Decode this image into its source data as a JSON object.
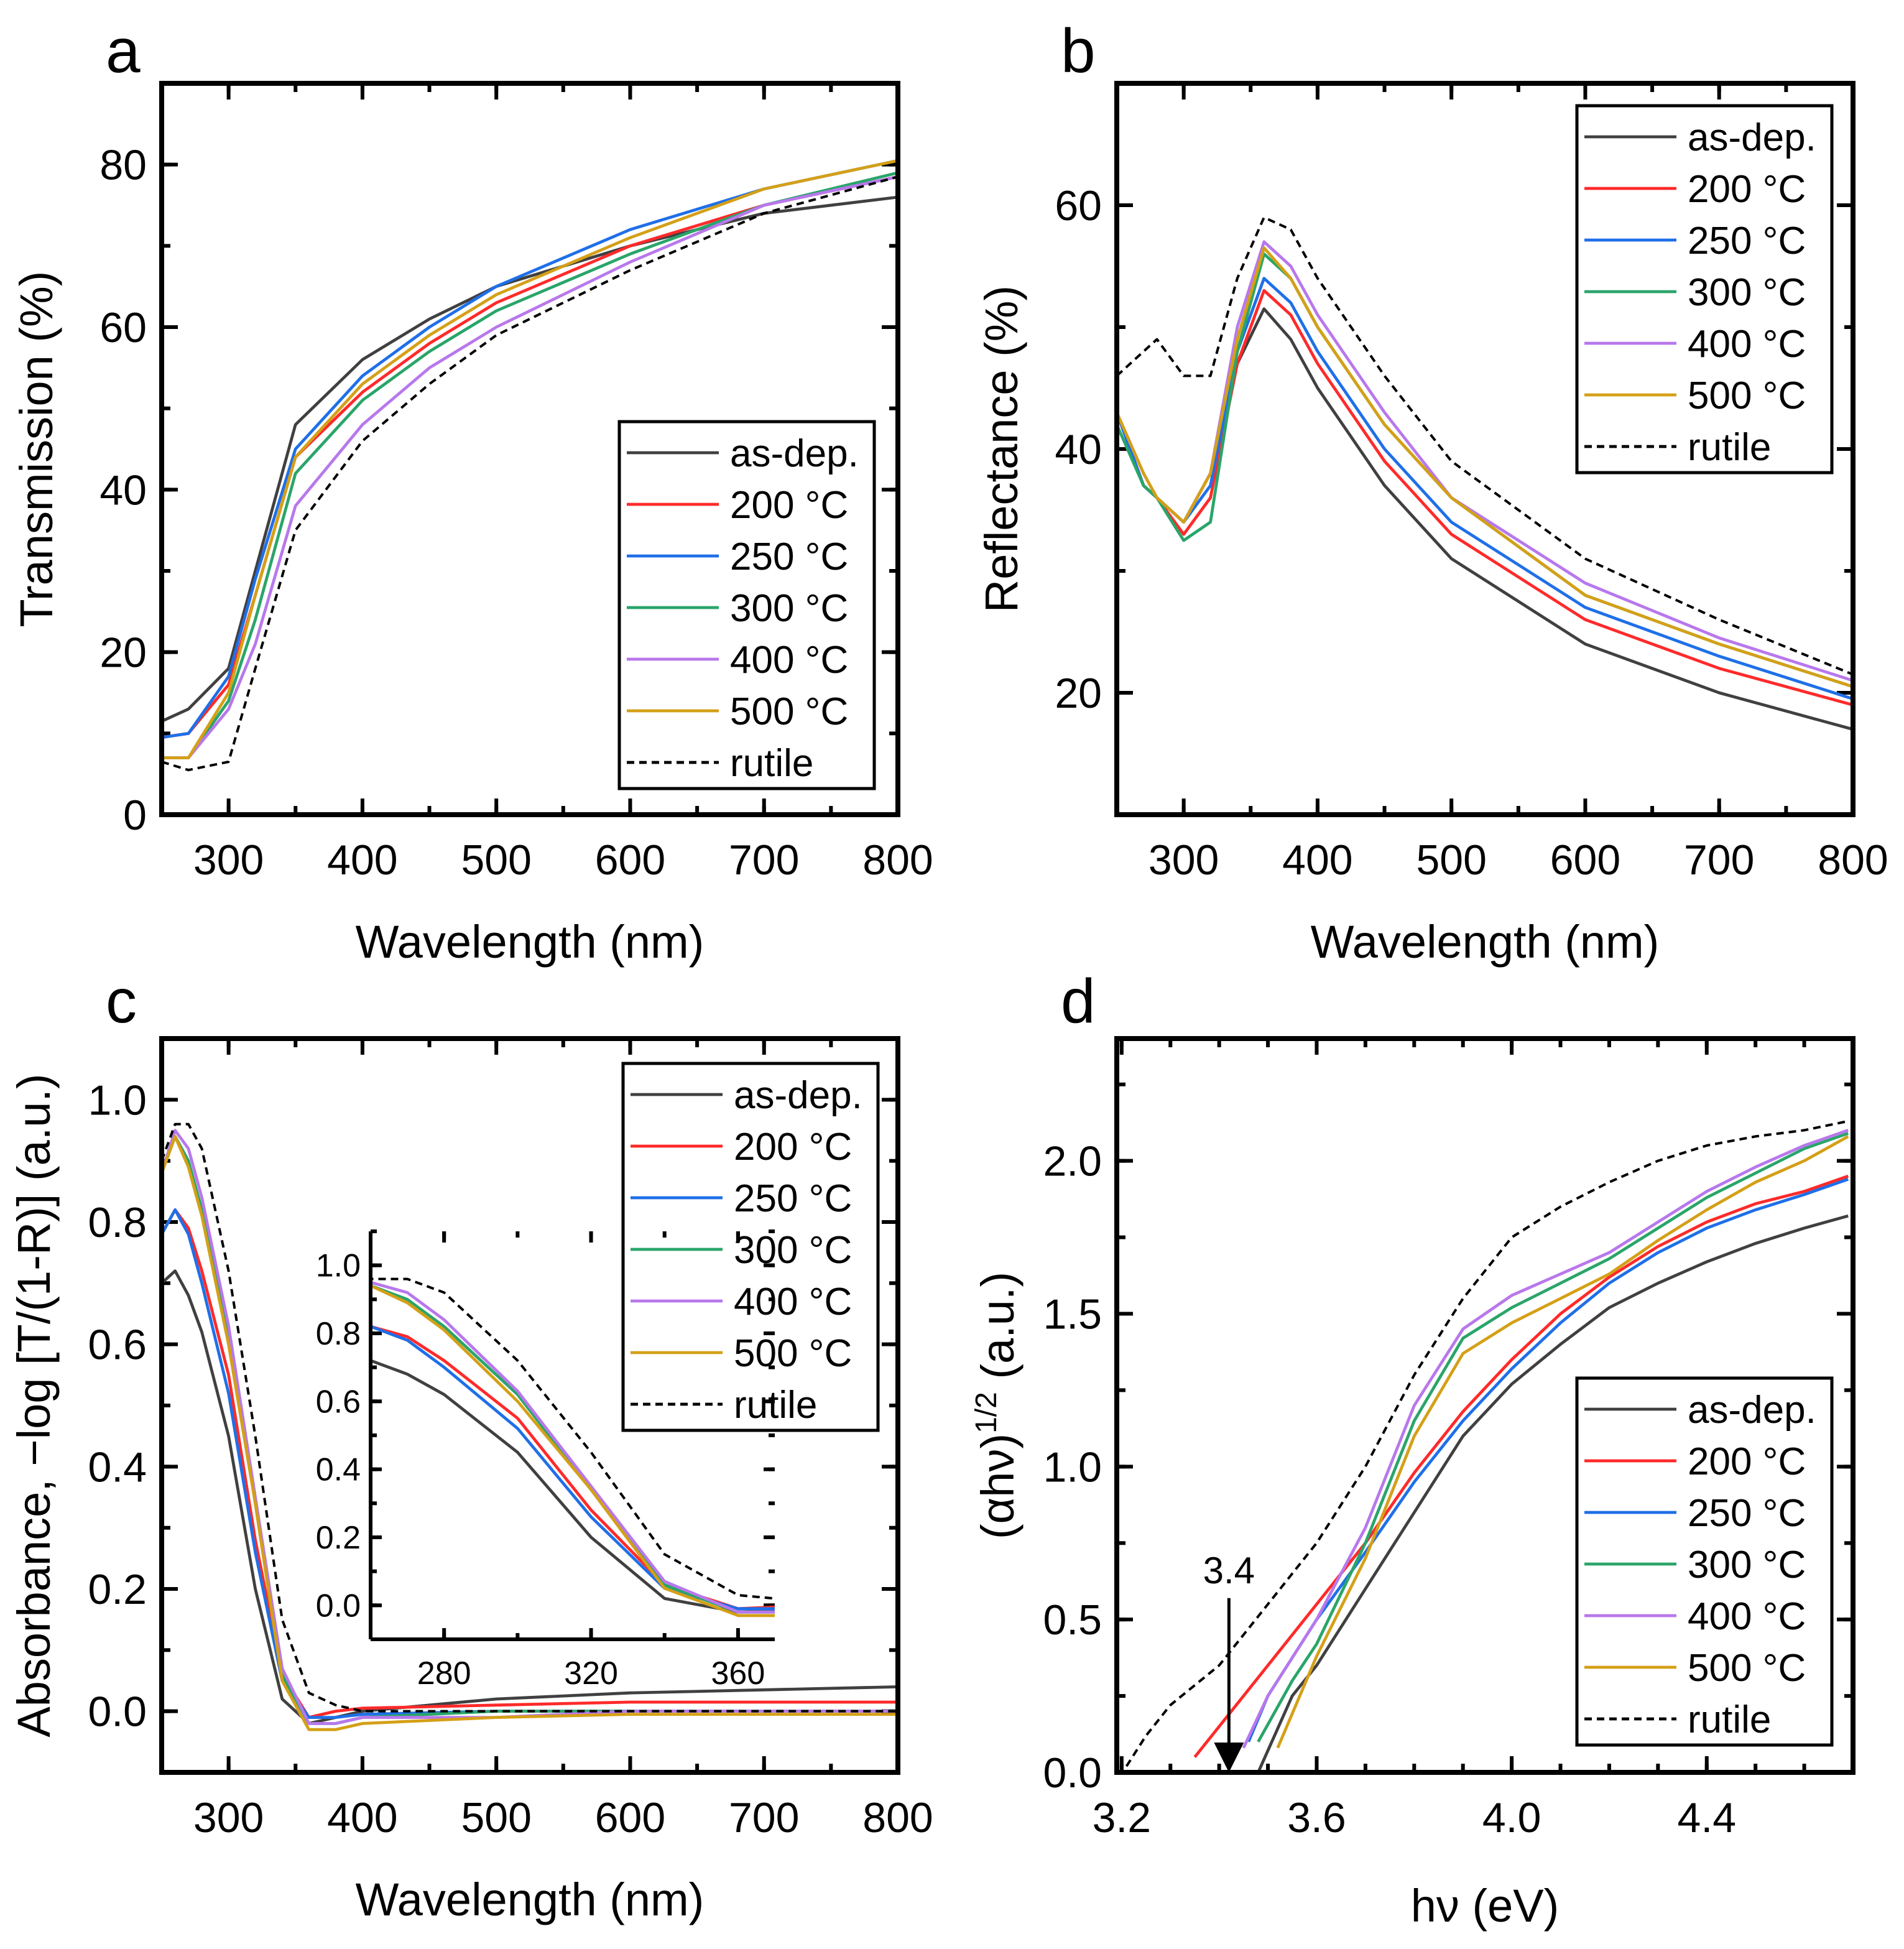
{
  "colors": {
    "as-dep.": "#404040",
    "200 °C": "#ff2a2a",
    "250 °C": "#1f6fe8",
    "300 °C": "#2aa56a",
    "400 °C": "#b878ec",
    "500 °C": "#d4a017",
    "rutile": "#000000"
  },
  "chart_data": [
    {
      "panel": "a",
      "type": "line",
      "xlabel": "Wavelength (nm)",
      "ylabel": "Transmission (%)",
      "xlim": [
        250,
        800
      ],
      "ylim": [
        0,
        90
      ],
      "xticks": [
        300,
        400,
        500,
        600,
        700,
        800
      ],
      "yticks": [
        0,
        20,
        40,
        60,
        80
      ],
      "grid": false,
      "legend": "bottom-right",
      "x": [
        250,
        270,
        300,
        320,
        350,
        400,
        450,
        500,
        600,
        700,
        800
      ],
      "series": [
        {
          "name": "as-dep.",
          "values": [
            11.5,
            13,
            18,
            30,
            48,
            56,
            61,
            65,
            70,
            74,
            76
          ]
        },
        {
          "name": "200 °C",
          "values": [
            9.5,
            10,
            16,
            27,
            44,
            52,
            58,
            63,
            70,
            75,
            78.5
          ]
        },
        {
          "name": "250 °C",
          "values": [
            9.5,
            10,
            17,
            29,
            45,
            54,
            60,
            65,
            72,
            77,
            80.5
          ]
        },
        {
          "name": "300 °C",
          "values": [
            7,
            7,
            14,
            24,
            42,
            51,
            57,
            62,
            69,
            75,
            79
          ]
        },
        {
          "name": "400 °C",
          "values": [
            7,
            7,
            13,
            21,
            38,
            48,
            55,
            60,
            68,
            75,
            78.5
          ]
        },
        {
          "name": "500 °C",
          "values": [
            7,
            7,
            15,
            27,
            44,
            53,
            59,
            64,
            71,
            77,
            80.5
          ]
        },
        {
          "name": "rutile",
          "dashed": true,
          "values": [
            6.5,
            5.5,
            6.5,
            18,
            35,
            46,
            53,
            59,
            67,
            74,
            78.5
          ]
        }
      ]
    },
    {
      "panel": "b",
      "type": "line",
      "xlabel": "Wavelength (nm)",
      "ylabel": "Reflectance (%)",
      "xlim": [
        250,
        800
      ],
      "ylim": [
        10,
        70
      ],
      "xticks": [
        300,
        400,
        500,
        600,
        700,
        800
      ],
      "yticks": [
        20,
        40,
        60
      ],
      "grid": false,
      "legend": "top-right",
      "x": [
        250,
        270,
        280,
        300,
        320,
        340,
        360,
        380,
        400,
        450,
        500,
        600,
        700,
        800
      ],
      "series": [
        {
          "name": "as-dep.",
          "values": [
            43,
            37,
            36,
            34,
            38,
            47,
            51.5,
            49,
            45,
            37,
            31,
            24,
            20,
            17
          ]
        },
        {
          "name": "200 °C",
          "values": [
            43,
            37,
            36,
            33,
            36,
            47,
            53,
            51,
            47,
            39,
            33,
            26,
            22,
            19
          ]
        },
        {
          "name": "250 °C",
          "values": [
            43,
            37,
            36,
            34,
            37,
            48,
            54,
            52,
            48,
            40,
            34,
            27,
            23,
            19.5
          ]
        },
        {
          "name": "300 °C",
          "values": [
            42,
            37,
            36,
            32.5,
            34,
            48,
            56,
            54,
            50,
            42,
            36,
            28,
            24,
            20.5
          ]
        },
        {
          "name": "400 °C",
          "values": [
            43,
            38,
            36,
            34,
            38,
            50,
            57,
            55,
            51,
            43,
            36,
            29,
            24.5,
            21
          ]
        },
        {
          "name": "500 °C",
          "values": [
            43,
            38,
            36,
            34,
            38,
            49,
            56.5,
            54,
            50,
            42,
            36,
            28,
            24,
            20.5
          ]
        },
        {
          "name": "rutile",
          "dashed": true,
          "values": [
            46,
            48,
            49,
            46,
            46,
            54,
            59,
            58,
            54,
            46,
            39,
            31,
            26,
            21.5
          ]
        }
      ]
    },
    {
      "panel": "c",
      "type": "line",
      "xlabel": "Wavelength (nm)",
      "ylabel": "Absorbance, −log [T/(1-R)] (a.u.)",
      "xlim": [
        250,
        800
      ],
      "ylim": [
        -0.1,
        1.1
      ],
      "xticks": [
        300,
        400,
        500,
        600,
        700,
        800
      ],
      "yticks": [
        0.0,
        0.2,
        0.4,
        0.6,
        0.8,
        1.0
      ],
      "grid": false,
      "legend": "top-right",
      "x": [
        250,
        260,
        270,
        280,
        300,
        320,
        340,
        360,
        380,
        400,
        500,
        600,
        800
      ],
      "series": [
        {
          "name": "as-dep.",
          "values": [
            0.7,
            0.72,
            0.68,
            0.62,
            0.45,
            0.2,
            0.02,
            -0.02,
            -0.01,
            0.0,
            0.02,
            0.03,
            0.04
          ]
        },
        {
          "name": "200 °C",
          "values": [
            0.78,
            0.82,
            0.79,
            0.72,
            0.55,
            0.28,
            0.06,
            -0.01,
            0.0,
            0.005,
            0.01,
            0.015,
            0.015
          ]
        },
        {
          "name": "250 °C",
          "values": [
            0.78,
            0.82,
            0.78,
            0.7,
            0.52,
            0.26,
            0.05,
            -0.01,
            -0.01,
            -0.005,
            0.0,
            0.0,
            0.0
          ]
        },
        {
          "name": "300 °C",
          "values": [
            0.88,
            0.94,
            0.9,
            0.82,
            0.62,
            0.34,
            0.06,
            -0.02,
            -0.02,
            -0.01,
            0.0,
            0.0,
            0.0
          ]
        },
        {
          "name": "400 °C",
          "values": [
            0.88,
            0.95,
            0.92,
            0.84,
            0.63,
            0.35,
            0.07,
            -0.02,
            -0.02,
            -0.01,
            -0.01,
            0.0,
            0.0
          ]
        },
        {
          "name": "500 °C",
          "values": [
            0.88,
            0.94,
            0.89,
            0.81,
            0.6,
            0.34,
            0.05,
            -0.03,
            -0.03,
            -0.02,
            -0.01,
            -0.005,
            -0.005
          ]
        },
        {
          "name": "rutile",
          "dashed": true,
          "values": [
            0.9,
            0.96,
            0.96,
            0.92,
            0.72,
            0.45,
            0.15,
            0.03,
            0.01,
            0.0,
            0.0,
            0.0,
            0.0
          ]
        }
      ],
      "inset": {
        "xlim": [
          260,
          370
        ],
        "ylim": [
          -0.1,
          1.1
        ],
        "xticks": [
          280,
          320,
          360
        ],
        "yticks": [
          0.0,
          0.2,
          0.4,
          0.6,
          0.8,
          1.0
        ]
      }
    },
    {
      "panel": "d",
      "type": "line",
      "xlabel": "hν (eV)",
      "ylabel_parts": [
        "(αhν)",
        "1/2",
        " (a.u.)"
      ],
      "xlim": [
        3.19,
        4.7
      ],
      "ylim": [
        0,
        2.4
      ],
      "xticks": [
        3.2,
        3.6,
        4.0,
        4.4
      ],
      "yticks": [
        0.0,
        0.5,
        1.0,
        1.5,
        2.0
      ],
      "grid": false,
      "legend": "bottom-right",
      "annotation": {
        "text": "3.4",
        "x": 3.42,
        "arrow_from_y": 0.57,
        "arrow_to_y": 0
      },
      "series": [
        {
          "name": "as-dep.",
          "points": [
            [
              3.48,
              0
            ],
            [
              3.55,
              0.25
            ],
            [
              3.6,
              0.35
            ],
            [
              3.7,
              0.6
            ],
            [
              3.8,
              0.85
            ],
            [
              3.9,
              1.1
            ],
            [
              4.0,
              1.27
            ],
            [
              4.1,
              1.4
            ],
            [
              4.2,
              1.52
            ],
            [
              4.3,
              1.6
            ],
            [
              4.4,
              1.67
            ],
            [
              4.5,
              1.73
            ],
            [
              4.6,
              1.78
            ],
            [
              4.69,
              1.82
            ]
          ]
        },
        {
          "name": "200 °C",
          "points": [
            [
              3.35,
              0.05
            ],
            [
              3.4,
              0.15
            ],
            [
              3.5,
              0.35
            ],
            [
              3.6,
              0.55
            ],
            [
              3.7,
              0.75
            ],
            [
              3.8,
              0.98
            ],
            [
              3.9,
              1.18
            ],
            [
              4.0,
              1.35
            ],
            [
              4.1,
              1.5
            ],
            [
              4.2,
              1.62
            ],
            [
              4.3,
              1.72
            ],
            [
              4.4,
              1.8
            ],
            [
              4.5,
              1.86
            ],
            [
              4.6,
              1.9
            ],
            [
              4.69,
              1.95
            ]
          ]
        },
        {
          "name": "250 °C",
          "points": [
            [
              3.46,
              0.1
            ],
            [
              3.5,
              0.25
            ],
            [
              3.6,
              0.5
            ],
            [
              3.7,
              0.72
            ],
            [
              3.8,
              0.95
            ],
            [
              3.9,
              1.15
            ],
            [
              4.0,
              1.32
            ],
            [
              4.1,
              1.47
            ],
            [
              4.2,
              1.6
            ],
            [
              4.3,
              1.7
            ],
            [
              4.4,
              1.78
            ],
            [
              4.5,
              1.84
            ],
            [
              4.6,
              1.89
            ],
            [
              4.69,
              1.94
            ]
          ]
        },
        {
          "name": "300 °C",
          "points": [
            [
              3.48,
              0.1
            ],
            [
              3.55,
              0.3
            ],
            [
              3.6,
              0.42
            ],
            [
              3.7,
              0.75
            ],
            [
              3.8,
              1.15
            ],
            [
              3.9,
              1.42
            ],
            [
              4.0,
              1.52
            ],
            [
              4.1,
              1.6
            ],
            [
              4.2,
              1.68
            ],
            [
              4.3,
              1.78
            ],
            [
              4.4,
              1.88
            ],
            [
              4.5,
              1.96
            ],
            [
              4.6,
              2.04
            ],
            [
              4.69,
              2.09
            ]
          ]
        },
        {
          "name": "400 °C",
          "points": [
            [
              3.45,
              0.08
            ],
            [
              3.5,
              0.25
            ],
            [
              3.6,
              0.5
            ],
            [
              3.7,
              0.8
            ],
            [
              3.8,
              1.2
            ],
            [
              3.9,
              1.45
            ],
            [
              4.0,
              1.56
            ],
            [
              4.1,
              1.63
            ],
            [
              4.2,
              1.7
            ],
            [
              4.3,
              1.8
            ],
            [
              4.4,
              1.9
            ],
            [
              4.5,
              1.98
            ],
            [
              4.6,
              2.05
            ],
            [
              4.69,
              2.1
            ]
          ]
        },
        {
          "name": "500 °C",
          "points": [
            [
              3.52,
              0.08
            ],
            [
              3.6,
              0.38
            ],
            [
              3.7,
              0.7
            ],
            [
              3.8,
              1.1
            ],
            [
              3.9,
              1.37
            ],
            [
              4.0,
              1.47
            ],
            [
              4.1,
              1.55
            ],
            [
              4.2,
              1.63
            ],
            [
              4.3,
              1.74
            ],
            [
              4.4,
              1.84
            ],
            [
              4.5,
              1.93
            ],
            [
              4.6,
              2.0
            ],
            [
              4.69,
              2.08
            ]
          ]
        },
        {
          "name": "rutile",
          "dashed": true,
          "points": [
            [
              3.21,
              0.02
            ],
            [
              3.25,
              0.12
            ],
            [
              3.3,
              0.22
            ],
            [
              3.4,
              0.35
            ],
            [
              3.5,
              0.55
            ],
            [
              3.6,
              0.75
            ],
            [
              3.7,
              1.0
            ],
            [
              3.8,
              1.3
            ],
            [
              3.9,
              1.55
            ],
            [
              4.0,
              1.75
            ],
            [
              4.1,
              1.85
            ],
            [
              4.2,
              1.93
            ],
            [
              4.3,
              2.0
            ],
            [
              4.4,
              2.05
            ],
            [
              4.5,
              2.08
            ],
            [
              4.6,
              2.1
            ],
            [
              4.69,
              2.13
            ]
          ]
        }
      ]
    }
  ]
}
